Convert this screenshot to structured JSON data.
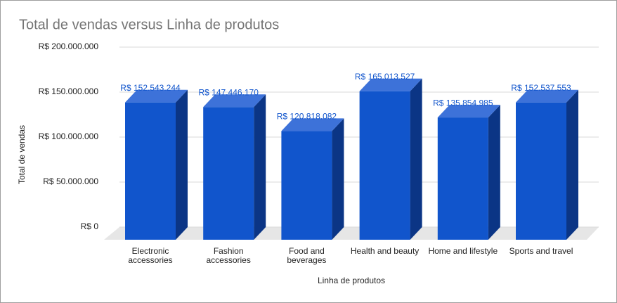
{
  "chart_data": {
    "type": "bar3d",
    "title": "Total de vendas versus Linha de produtos",
    "x_label": "Linha de produtos",
    "y_label": "Total de vendas",
    "categories": [
      "Electronic accessories",
      "Fashion accessories",
      "Food and beverages",
      "Health and beauty",
      "Home and lifestyle",
      "Sports and travel"
    ],
    "values": [
      152543244,
      147446170,
      120818082,
      165013527,
      135854985,
      152537553
    ],
    "value_labels": [
      "R$ 152.543.244",
      "R$ 147.446.170",
      "R$ 120.818.082",
      "R$ 165.013.527",
      "R$ 135.854.985",
      "R$ 152.537.553"
    ],
    "color": "#1155cc",
    "ylim": [
      0,
      200000000
    ],
    "yticks": [
      {
        "value": 0,
        "label": "R$ 0"
      },
      {
        "value": 50000000,
        "label": "R$ 50.000.000"
      },
      {
        "value": 100000000,
        "label": "R$ 100.000.000"
      },
      {
        "value": 150000000,
        "label": "R$ 150.000.000"
      },
      {
        "value": 200000000,
        "label": "R$ 200.000.000"
      }
    ],
    "grid": true
  }
}
